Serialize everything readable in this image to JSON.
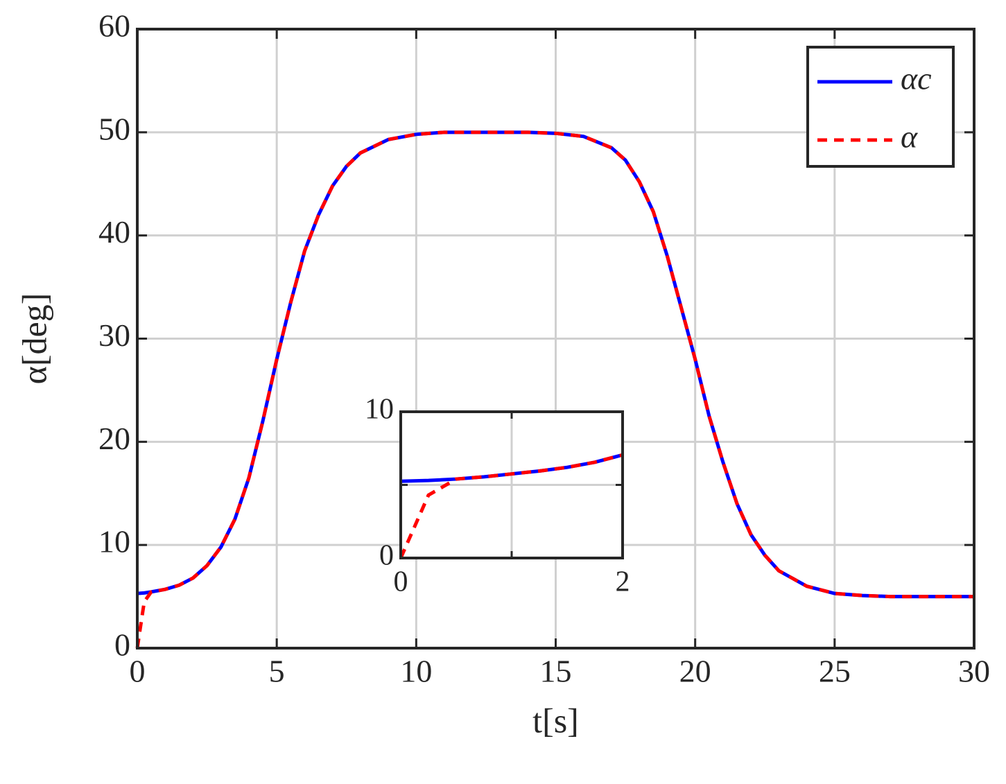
{
  "chart_data": [
    {
      "type": "line",
      "xlabel": "t[s]",
      "ylabel": "α[deg]",
      "x": [
        0,
        0.25,
        0.5,
        1,
        1.5,
        2,
        2.5,
        3,
        3.5,
        4,
        4.5,
        5,
        5.5,
        6,
        6.5,
        7,
        7.5,
        8,
        9,
        10,
        11,
        12,
        13,
        14,
        15,
        16,
        17,
        17.5,
        18,
        18.5,
        19,
        19.5,
        20,
        20.5,
        21,
        21.5,
        22,
        22.5,
        23,
        24,
        25,
        26,
        27,
        28,
        30
      ],
      "series": [
        {
          "name": "αc",
          "color": "#0000ff",
          "style": "solid",
          "values": [
            5.3,
            5.35,
            5.45,
            5.7,
            6.1,
            6.8,
            8,
            9.8,
            12.5,
            16.5,
            22,
            28,
            33.5,
            38.5,
            42,
            44.8,
            46.7,
            48,
            49.3,
            49.8,
            50,
            50,
            50,
            50,
            49.9,
            49.6,
            48.5,
            47.3,
            45.2,
            42.3,
            38,
            33,
            28,
            22.5,
            18,
            14,
            11,
            9,
            7.5,
            6,
            5.3,
            5.1,
            5,
            5,
            5
          ]
        },
        {
          "name": "α",
          "color": "#ff0000",
          "style": "dashed",
          "values": [
            0,
            4.5,
            5.45,
            5.7,
            6.1,
            6.8,
            8,
            9.8,
            12.5,
            16.5,
            22,
            28,
            33.5,
            38.5,
            42,
            44.8,
            46.7,
            48,
            49.3,
            49.8,
            50,
            50,
            50,
            50,
            49.9,
            49.6,
            48.5,
            47.3,
            45.2,
            42.3,
            38,
            33,
            28,
            22.5,
            18,
            14,
            11,
            9,
            7.5,
            6,
            5.3,
            5.1,
            5,
            5,
            5
          ]
        }
      ],
      "xlim": [
        0,
        30
      ],
      "xticks": [
        0,
        5,
        10,
        15,
        20,
        25,
        30
      ],
      "ylim": [
        0,
        60
      ],
      "yticks": [
        0,
        10,
        20,
        30,
        40,
        50,
        60
      ],
      "grid": true,
      "legend": "upper right"
    },
    {
      "type": "line",
      "x": [
        0,
        0.25,
        0.5,
        0.75,
        1,
        1.25,
        1.5,
        1.75,
        2
      ],
      "series": [
        {
          "color": "#0000ff",
          "style": "solid",
          "values": [
            5.25,
            5.3,
            5.4,
            5.55,
            5.75,
            5.95,
            6.2,
            6.55,
            7.05
          ]
        },
        {
          "color": "#ff0000",
          "style": "dashed",
          "values": [
            0,
            4.3,
            5.4,
            5.55,
            5.75,
            5.95,
            6.2,
            6.55,
            7.05
          ]
        }
      ],
      "xlim": [
        0,
        2
      ],
      "xticks": [
        0,
        {
          "value": 1,
          "label": null
        },
        2
      ],
      "ylim": [
        0,
        10
      ],
      "yticks": [
        0,
        {
          "value": 5,
          "label": null
        },
        10
      ],
      "grid": true
    }
  ]
}
